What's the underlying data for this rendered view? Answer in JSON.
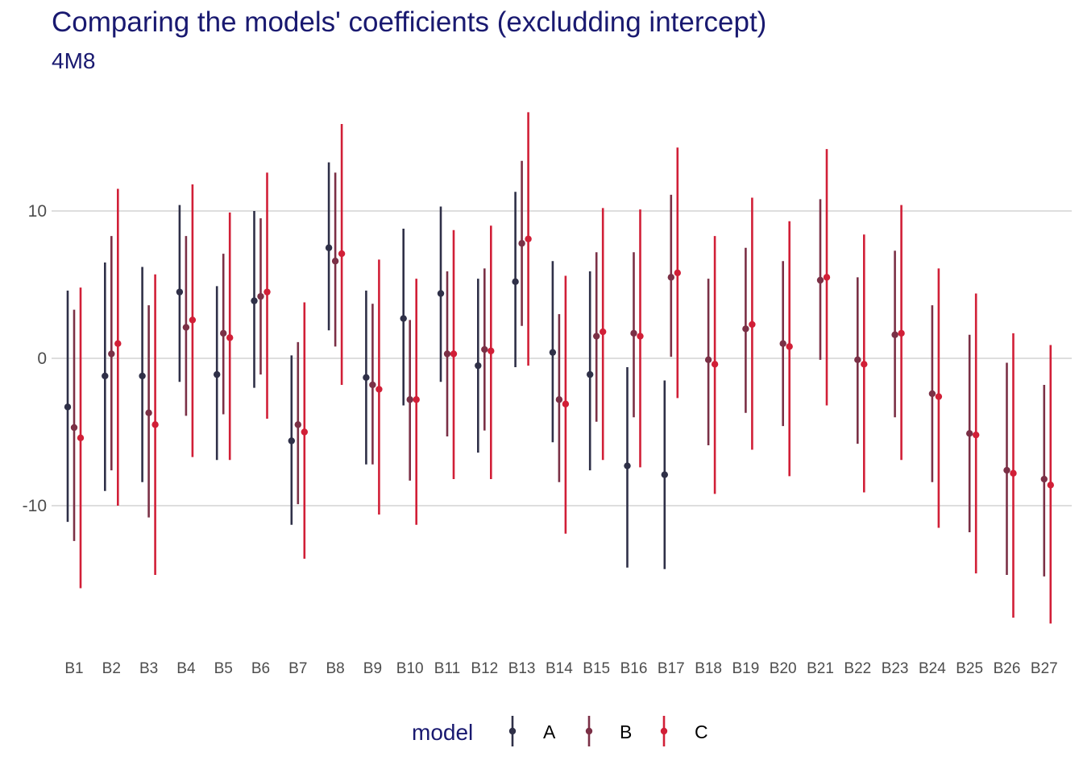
{
  "title": "Comparing the models' coefficients (excludding intercept)",
  "subtitle": "4M8",
  "chart_data": {
    "type": "pointrange",
    "title": "Comparing the models' coefficients (excludding intercept)",
    "subtitle": "4M8",
    "xlabel": "",
    "ylabel": "",
    "ylim": [
      -19,
      17
    ],
    "yticks": [
      -10,
      0,
      10
    ],
    "ytick_labels": [
      "-10",
      "0",
      "10"
    ],
    "grid": "horizontal major lines",
    "legend_position": "bottom",
    "legend_title": "model",
    "categories": [
      "B1",
      "B2",
      "B3",
      "B4",
      "B5",
      "B6",
      "B7",
      "B8",
      "B9",
      "B10",
      "B11",
      "B12",
      "B13",
      "B14",
      "B15",
      "B16",
      "B17",
      "B18",
      "B19",
      "B20",
      "B21",
      "B22",
      "B23",
      "B24",
      "B25",
      "B26",
      "B27"
    ],
    "series": [
      {
        "name": "A",
        "color": "#2f3048",
        "estimate": [
          -3.3,
          -1.2,
          -1.2,
          4.5,
          -1.1,
          3.9,
          -5.6,
          7.5,
          -1.3,
          2.7,
          4.4,
          -0.5,
          5.2,
          0.4,
          -1.1,
          -7.3,
          -7.9,
          null,
          null,
          null,
          null,
          null,
          null,
          null,
          null,
          null,
          null
        ],
        "lower": [
          -11.1,
          -9.0,
          -8.4,
          -1.6,
          -6.9,
          -2.0,
          -11.3,
          1.9,
          -7.2,
          -3.2,
          -1.6,
          -6.4,
          -0.6,
          -5.7,
          -7.6,
          -14.2,
          -14.3,
          null,
          null,
          null,
          null,
          null,
          null,
          null,
          null,
          null,
          null
        ],
        "upper": [
          4.6,
          6.5,
          6.2,
          10.4,
          4.9,
          10.0,
          0.2,
          13.3,
          4.6,
          8.8,
          10.3,
          5.4,
          11.3,
          6.6,
          5.9,
          -0.6,
          -1.5,
          null,
          null,
          null,
          null,
          null,
          null,
          null,
          null,
          null,
          null
        ]
      },
      {
        "name": "B",
        "color": "#7b3046",
        "estimate": [
          -4.7,
          0.3,
          -3.7,
          2.1,
          1.7,
          4.2,
          -4.5,
          6.6,
          -1.8,
          -2.8,
          0.3,
          0.6,
          7.8,
          -2.8,
          1.5,
          1.7,
          5.5,
          -0.1,
          2.0,
          1.0,
          5.3,
          -0.1,
          1.6,
          -2.4,
          -5.1,
          -7.6,
          -8.2
        ],
        "lower": [
          -12.4,
          -7.6,
          -10.8,
          -3.9,
          -3.8,
          -1.1,
          -9.9,
          0.8,
          -7.2,
          -8.3,
          -5.3,
          -4.9,
          2.2,
          -8.4,
          -4.3,
          -4.0,
          0.1,
          -5.9,
          -3.7,
          -4.6,
          -0.1,
          -5.8,
          -4.0,
          -8.4,
          -11.8,
          -14.7,
          -14.8
        ],
        "upper": [
          3.3,
          8.3,
          3.6,
          8.3,
          7.1,
          9.5,
          1.1,
          12.6,
          3.7,
          2.6,
          5.9,
          6.1,
          13.4,
          3.0,
          7.2,
          7.2,
          11.1,
          5.4,
          7.5,
          6.6,
          10.8,
          5.5,
          7.3,
          3.6,
          1.6,
          -0.3,
          -1.8
        ]
      },
      {
        "name": "C",
        "color": "#d11f37",
        "estimate": [
          -5.4,
          1.0,
          -4.5,
          2.6,
          1.4,
          4.5,
          -5.0,
          7.1,
          -2.1,
          -2.8,
          0.3,
          0.5,
          8.1,
          -3.1,
          1.8,
          1.5,
          5.8,
          -0.4,
          2.3,
          0.8,
          5.5,
          -0.4,
          1.7,
          -2.6,
          -5.2,
          -7.8,
          -8.6
        ],
        "lower": [
          -15.6,
          -10.0,
          -14.7,
          -6.7,
          -6.9,
          -4.1,
          -13.6,
          -1.8,
          -10.6,
          -11.3,
          -8.2,
          -8.2,
          -0.5,
          -11.9,
          -6.9,
          -7.4,
          -2.7,
          -9.2,
          -6.2,
          -8.0,
          -3.2,
          -9.1,
          -6.9,
          -11.5,
          -14.6,
          -17.6,
          -18.0
        ],
        "upper": [
          4.8,
          11.5,
          5.7,
          11.8,
          9.9,
          12.6,
          3.8,
          15.9,
          6.7,
          5.4,
          8.7,
          9.0,
          16.7,
          5.6,
          10.2,
          10.1,
          14.3,
          8.3,
          10.9,
          9.3,
          14.2,
          8.4,
          10.4,
          6.1,
          4.4,
          1.7,
          0.9
        ]
      }
    ]
  }
}
